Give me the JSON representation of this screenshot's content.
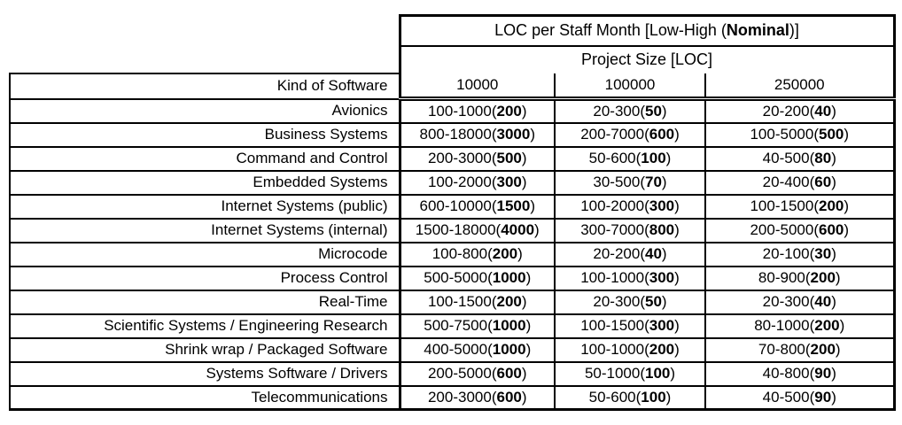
{
  "table": {
    "title": {
      "prefix": "LOC per Staff Month [Low-High (",
      "bold": "Nominal",
      "suffix": ")]"
    },
    "subtitle": "Project Size [LOC]",
    "corner_header": "Kind of Software",
    "size_columns": [
      "10000",
      "100000",
      "250000"
    ],
    "rows": [
      {
        "kind": "Avionics",
        "cells": [
          {
            "range": "100-1000",
            "nominal": "200"
          },
          {
            "range": "20-300",
            "nominal": "50"
          },
          {
            "range": "20-200",
            "nominal": "40"
          }
        ]
      },
      {
        "kind": "Business Systems",
        "cells": [
          {
            "range": "800-18000",
            "nominal": "3000"
          },
          {
            "range": "200-7000",
            "nominal": "600"
          },
          {
            "range": "100-5000",
            "nominal": "500"
          }
        ]
      },
      {
        "kind": "Command and Control",
        "cells": [
          {
            "range": "200-3000",
            "nominal": "500"
          },
          {
            "range": "50-600",
            "nominal": "100"
          },
          {
            "range": "40-500",
            "nominal": "80"
          }
        ]
      },
      {
        "kind": "Embedded Systems",
        "cells": [
          {
            "range": "100-2000",
            "nominal": "300"
          },
          {
            "range": "30-500",
            "nominal": "70"
          },
          {
            "range": "20-400",
            "nominal": "60"
          }
        ]
      },
      {
        "kind": "Internet Systems (public)",
        "cells": [
          {
            "range": "600-10000",
            "nominal": "1500"
          },
          {
            "range": "100-2000",
            "nominal": "300"
          },
          {
            "range": "100-1500",
            "nominal": "200"
          }
        ]
      },
      {
        "kind": "Internet Systems (internal)",
        "cells": [
          {
            "range": "1500-18000",
            "nominal": "4000"
          },
          {
            "range": "300-7000",
            "nominal": "800"
          },
          {
            "range": "200-5000",
            "nominal": "600"
          }
        ]
      },
      {
        "kind": "Microcode",
        "cells": [
          {
            "range": "100-800",
            "nominal": "200"
          },
          {
            "range": "20-200",
            "nominal": "40"
          },
          {
            "range": "20-100",
            "nominal": "30"
          }
        ]
      },
      {
        "kind": "Process Control",
        "cells": [
          {
            "range": "500-5000",
            "nominal": "1000"
          },
          {
            "range": "100-1000",
            "nominal": "300"
          },
          {
            "range": "80-900",
            "nominal": "200"
          }
        ]
      },
      {
        "kind": "Real-Time",
        "cells": [
          {
            "range": "100-1500",
            "nominal": "200"
          },
          {
            "range": "20-300",
            "nominal": "50"
          },
          {
            "range": "20-300",
            "nominal": "40"
          }
        ]
      },
      {
        "kind": "Scientific Systems / Engineering Research",
        "cells": [
          {
            "range": "500-7500",
            "nominal": "1000"
          },
          {
            "range": "100-1500",
            "nominal": "300"
          },
          {
            "range": "80-1000",
            "nominal": "200"
          }
        ]
      },
      {
        "kind": "Shrink wrap / Packaged Software",
        "cells": [
          {
            "range": "400-5000",
            "nominal": "1000"
          },
          {
            "range": "100-1000",
            "nominal": "200"
          },
          {
            "range": "70-800",
            "nominal": "200"
          }
        ]
      },
      {
        "kind": "Systems Software / Drivers",
        "cells": [
          {
            "range": "200-5000",
            "nominal": "600"
          },
          {
            "range": "50-1000",
            "nominal": "100"
          },
          {
            "range": "40-800",
            "nominal": "90"
          }
        ]
      },
      {
        "kind": "Telecommunications",
        "cells": [
          {
            "range": "200-3000",
            "nominal": "600"
          },
          {
            "range": "50-600",
            "nominal": "100"
          },
          {
            "range": "40-500",
            "nominal": "90"
          }
        ]
      }
    ]
  }
}
